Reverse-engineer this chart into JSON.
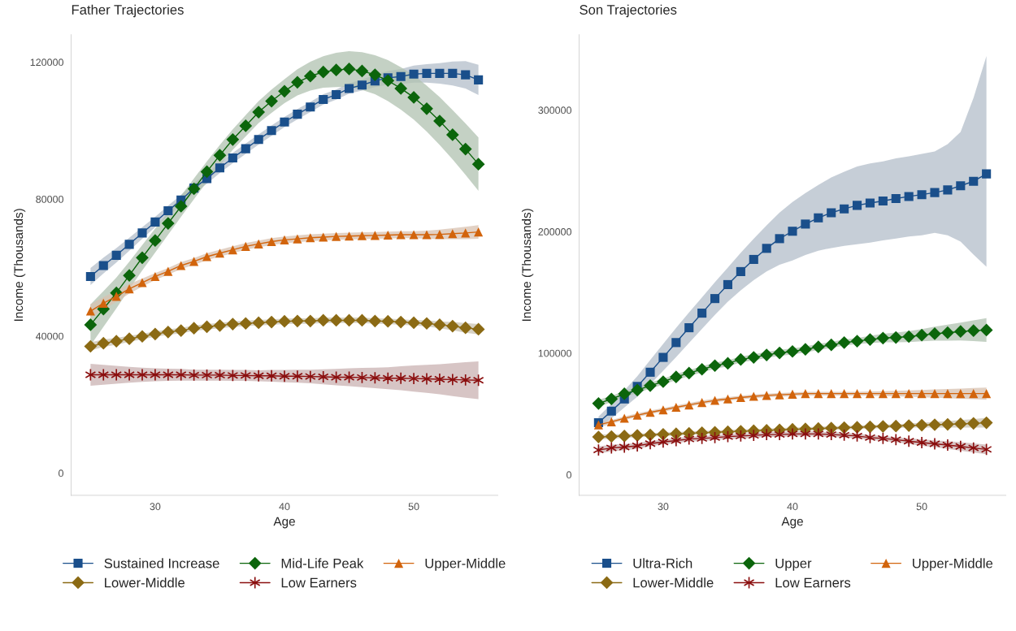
{
  "chart_data": [
    {
      "type": "line",
      "title": "Father Trajectories",
      "xlabel": "Age",
      "ylabel": "Income (Thousands)",
      "x": [
        25,
        26,
        27,
        28,
        29,
        30,
        31,
        32,
        33,
        34,
        35,
        36,
        37,
        38,
        39,
        40,
        41,
        42,
        43,
        44,
        45,
        46,
        47,
        48,
        49,
        50,
        51,
        52,
        53,
        54,
        55
      ],
      "xlim": [
        23.5,
        56.5
      ],
      "xticks": [
        30,
        40,
        50
      ],
      "ylim": [
        -6500,
        128000
      ],
      "yticks": [
        0,
        40000,
        80000,
        120000
      ],
      "grid": false,
      "legend": "bottom",
      "series": [
        {
          "name": "Sustained Increase",
          "color": "#1a4f8b",
          "marker": "square",
          "values": [
            57400,
            60600,
            63600,
            66800,
            70100,
            73300,
            76600,
            79700,
            83200,
            86000,
            89100,
            92000,
            94700,
            97400,
            100000,
            102500,
            104800,
            106900,
            109100,
            110500,
            112300,
            113300,
            114500,
            115400,
            115800,
            116500,
            116700,
            116700,
            116700,
            116300,
            114800
          ],
          "lower": [
            54900,
            58300,
            61500,
            64900,
            68400,
            71800,
            75100,
            78200,
            81700,
            84500,
            87600,
            90500,
            93200,
            95900,
            98500,
            101000,
            103300,
            105400,
            107600,
            109000,
            110800,
            111700,
            112700,
            113400,
            113600,
            114000,
            114000,
            113700,
            113200,
            112300,
            110400
          ],
          "upper": [
            59900,
            62900,
            65700,
            68700,
            71800,
            74800,
            78100,
            81200,
            84700,
            87500,
            90600,
            93500,
            96200,
            98900,
            101500,
            104000,
            106300,
            108400,
            110600,
            112000,
            113800,
            114900,
            116300,
            117400,
            118000,
            119000,
            119400,
            119700,
            120200,
            120300,
            119200
          ]
        },
        {
          "name": "Mid-Life Peak",
          "color": "#0b650b",
          "marker": "diamond",
          "values": [
            43300,
            47900,
            52600,
            57700,
            62900,
            67900,
            72900,
            77900,
            83000,
            88000,
            92800,
            97400,
            101400,
            105400,
            108600,
            111500,
            114100,
            115900,
            117100,
            117700,
            118000,
            117400,
            116300,
            114600,
            112300,
            109700,
            106400,
            102800,
            98800,
            94600,
            90200
          ],
          "lower": [
            37300,
            42700,
            48100,
            53700,
            59200,
            64400,
            69600,
            74800,
            80000,
            85000,
            89800,
            94400,
            98300,
            102200,
            105200,
            108000,
            110300,
            111700,
            112500,
            112700,
            112800,
            111900,
            110600,
            108600,
            106100,
            103200,
            99700,
            95800,
            91600,
            87100,
            82400
          ],
          "upper": [
            49300,
            53100,
            57100,
            61700,
            66600,
            71400,
            76200,
            81000,
            86000,
            91000,
            95800,
            100400,
            104500,
            108600,
            112000,
            115000,
            117900,
            120100,
            121700,
            122700,
            123200,
            122900,
            122000,
            120600,
            118500,
            116200,
            113100,
            109800,
            106000,
            102100,
            98000
          ]
        },
        {
          "name": "Upper-Middle",
          "color": "#d2640c",
          "marker": "triangle",
          "values": [
            47300,
            49600,
            51600,
            53800,
            55600,
            57400,
            58900,
            60600,
            61800,
            63200,
            64200,
            65200,
            66200,
            66900,
            67600,
            68100,
            68400,
            68700,
            68900,
            69100,
            69200,
            69300,
            69400,
            69500,
            69600,
            69600,
            69600,
            69700,
            69900,
            70100,
            70400
          ],
          "lower": [
            45300,
            47800,
            50000,
            52400,
            54400,
            56400,
            57900,
            59600,
            60800,
            62200,
            63200,
            64200,
            65200,
            65900,
            66600,
            67100,
            67400,
            67700,
            67900,
            68100,
            68200,
            68300,
            68400,
            68500,
            68600,
            68600,
            68400,
            68300,
            68300,
            68300,
            68400
          ],
          "upper": [
            49300,
            51400,
            53200,
            55200,
            56800,
            58400,
            59900,
            61600,
            62800,
            64200,
            65200,
            66200,
            67200,
            67900,
            68600,
            69100,
            69400,
            69700,
            69900,
            70100,
            70200,
            70300,
            70400,
            70500,
            70600,
            70600,
            70800,
            71100,
            71500,
            71900,
            72400
          ]
        },
        {
          "name": "Lower-Middle",
          "color": "#8b6a14",
          "marker": "diamond",
          "values": [
            37000,
            37900,
            38500,
            39200,
            39900,
            40600,
            41200,
            41600,
            42300,
            42700,
            43100,
            43500,
            43700,
            43900,
            44100,
            44300,
            44400,
            44400,
            44600,
            44600,
            44600,
            44600,
            44400,
            44300,
            44100,
            43900,
            43700,
            43300,
            42900,
            42400,
            42000
          ],
          "lower": [
            35800,
            36800,
            37500,
            38300,
            39100,
            39800,
            40400,
            40800,
            41500,
            41900,
            42300,
            42700,
            42900,
            43100,
            43300,
            43500,
            43600,
            43600,
            43800,
            43800,
            43800,
            43800,
            43600,
            43500,
            43300,
            43100,
            42800,
            42300,
            41700,
            41000,
            40500
          ],
          "upper": [
            38200,
            39000,
            39500,
            40100,
            40700,
            41400,
            42000,
            42400,
            43100,
            43500,
            43900,
            44300,
            44500,
            44700,
            44900,
            45100,
            45200,
            45200,
            45400,
            45400,
            45400,
            45400,
            45200,
            45100,
            44900,
            44700,
            44600,
            44300,
            44100,
            43800,
            43500
          ]
        },
        {
          "name": "Low Earners",
          "color": "#8b0f0f",
          "marker": "cross",
          "values": [
            28700,
            28700,
            28700,
            28700,
            28700,
            28700,
            28700,
            28700,
            28600,
            28600,
            28600,
            28500,
            28500,
            28400,
            28400,
            28300,
            28300,
            28200,
            28100,
            28000,
            28000,
            27900,
            27800,
            27700,
            27700,
            27600,
            27500,
            27400,
            27300,
            27200,
            27100
          ],
          "lower": [
            25500,
            25800,
            26100,
            26400,
            26600,
            26800,
            26900,
            27000,
            27000,
            27000,
            27000,
            26900,
            26900,
            26800,
            26700,
            26500,
            26400,
            26200,
            25900,
            25600,
            25400,
            25100,
            24800,
            24500,
            24200,
            23800,
            23400,
            23000,
            22500,
            22000,
            21600
          ],
          "upper": [
            31900,
            31600,
            31300,
            31000,
            30800,
            30600,
            30500,
            30400,
            30200,
            30200,
            30200,
            30100,
            30100,
            30000,
            30100,
            30100,
            30200,
            30200,
            30300,
            30400,
            30600,
            30700,
            30800,
            30900,
            31200,
            31400,
            31600,
            31800,
            32100,
            32400,
            32600
          ]
        }
      ]
    },
    {
      "type": "line",
      "title": "Son Trajectories",
      "xlabel": "Age",
      "ylabel": "Income (Thousands)",
      "x": [
        25,
        26,
        27,
        28,
        29,
        30,
        31,
        32,
        33,
        34,
        35,
        36,
        37,
        38,
        39,
        40,
        41,
        42,
        43,
        44,
        45,
        46,
        47,
        48,
        49,
        50,
        51,
        52,
        53,
        54,
        55
      ],
      "xlim": [
        23.5,
        56.5
      ],
      "xticks": [
        30,
        40,
        50
      ],
      "ylim": [
        -17000,
        362000
      ],
      "yticks": [
        0,
        100000,
        200000,
        300000
      ],
      "grid": false,
      "legend": "bottom",
      "series": [
        {
          "name": "Ultra-Rich",
          "color": "#1a4f8b",
          "marker": "square",
          "values": [
            42800,
            52300,
            62300,
            72600,
            84300,
            96500,
            108700,
            120900,
            132900,
            144900,
            156400,
            167100,
            177100,
            186200,
            194200,
            200300,
            206200,
            211300,
            215500,
            218700,
            221600,
            223500,
            225200,
            227200,
            228900,
            230400,
            232100,
            234300,
            237700,
            241400,
            247500
          ],
          "lower": [
            37800,
            46300,
            55300,
            64100,
            74300,
            85500,
            96700,
            108400,
            119900,
            131400,
            142400,
            151600,
            160100,
            167200,
            172700,
            176300,
            180700,
            184300,
            186500,
            188200,
            189600,
            191000,
            192700,
            194200,
            195900,
            196900,
            199000,
            197000,
            191800,
            181000,
            171000
          ],
          "upper": [
            47800,
            58300,
            69300,
            81100,
            94300,
            107500,
            120700,
            133400,
            145900,
            158400,
            170400,
            182600,
            194100,
            205200,
            215700,
            224300,
            231700,
            238300,
            244500,
            249200,
            253600,
            256000,
            257700,
            260200,
            261900,
            263900,
            266000,
            272000,
            282000,
            310000,
            344500
          ]
        },
        {
          "name": "Upper",
          "color": "#0b650b",
          "marker": "diamond",
          "values": [
            58600,
            62300,
            66500,
            69600,
            73300,
            76500,
            80400,
            83600,
            86700,
            89700,
            91600,
            94800,
            96500,
            98500,
            100200,
            101400,
            103100,
            105100,
            106800,
            108700,
            109900,
            111200,
            112400,
            112900,
            113600,
            114800,
            116000,
            116800,
            117800,
            118500,
            119000
          ],
          "lower": [
            55600,
            59800,
            64000,
            67100,
            70800,
            74000,
            77900,
            81100,
            84200,
            87200,
            89100,
            92300,
            94000,
            96000,
            97700,
            98900,
            100600,
            102600,
            104300,
            106200,
            107400,
            108200,
            108900,
            108900,
            109100,
            109800,
            110200,
            110200,
            110400,
            110000,
            109200
          ],
          "upper": [
            61600,
            64800,
            69000,
            72100,
            75800,
            79000,
            82900,
            86100,
            89200,
            92200,
            94100,
            97300,
            99000,
            101000,
            102700,
            103900,
            105600,
            107600,
            109300,
            111200,
            112400,
            114200,
            115900,
            116900,
            118100,
            119800,
            121800,
            123400,
            125200,
            127000,
            128800
          ]
        },
        {
          "name": "Upper-Middle",
          "color": "#d2640c",
          "marker": "triangle",
          "values": [
            41000,
            43500,
            46400,
            48900,
            51300,
            53300,
            55500,
            57400,
            59400,
            61100,
            62300,
            63500,
            64500,
            65200,
            65700,
            66200,
            66700,
            66700,
            66700,
            66700,
            66700,
            66700,
            66700,
            66700,
            66700,
            66700,
            66700,
            66700,
            66700,
            66700,
            66700
          ],
          "lower": [
            39000,
            42000,
            44900,
            47400,
            49800,
            51800,
            54000,
            55900,
            57900,
            59600,
            60800,
            62000,
            63000,
            63700,
            64200,
            64700,
            65200,
            65200,
            65200,
            65200,
            65200,
            64900,
            64700,
            64400,
            64100,
            63700,
            63300,
            62900,
            62500,
            62100,
            61700
          ],
          "upper": [
            43000,
            45000,
            47900,
            50400,
            52800,
            54800,
            57000,
            58900,
            60900,
            62600,
            63800,
            65000,
            66000,
            66700,
            67200,
            67700,
            68200,
            68200,
            68200,
            68200,
            68200,
            68500,
            68700,
            69000,
            69300,
            69700,
            70100,
            70500,
            70900,
            71300,
            71700
          ]
        },
        {
          "name": "Lower-Middle",
          "color": "#8b6a14",
          "marker": "diamond",
          "values": [
            31000,
            31400,
            31800,
            32300,
            32700,
            33200,
            33600,
            34000,
            34500,
            34900,
            35300,
            35700,
            36100,
            36500,
            36900,
            37300,
            37600,
            38000,
            38300,
            38700,
            39000,
            39400,
            39700,
            40000,
            40400,
            40700,
            41100,
            41400,
            41800,
            42200,
            42700
          ],
          "lower": [
            29000,
            29600,
            30200,
            30800,
            31200,
            31700,
            32100,
            32500,
            33000,
            33400,
            33800,
            34200,
            34600,
            35000,
            35400,
            35800,
            36100,
            36500,
            36800,
            37200,
            37500,
            37900,
            38200,
            38500,
            38700,
            38700,
            38800,
            38700,
            38700,
            38700,
            38700
          ],
          "upper": [
            33000,
            33200,
            33400,
            33800,
            34200,
            34700,
            35100,
            35500,
            36000,
            36400,
            36800,
            37200,
            37600,
            38000,
            38400,
            38800,
            39100,
            39500,
            39800,
            40200,
            40500,
            40900,
            41200,
            41500,
            42100,
            42700,
            43400,
            44100,
            44900,
            45700,
            46700
          ]
        },
        {
          "name": "Low Earners",
          "color": "#8b0f0f",
          "marker": "cross",
          "values": [
            20300,
            22000,
            22700,
            23700,
            25600,
            26900,
            28100,
            29300,
            29800,
            30500,
            31300,
            31800,
            32300,
            33000,
            33000,
            33500,
            33500,
            33500,
            33000,
            32500,
            31800,
            30500,
            29800,
            28800,
            27600,
            26400,
            25400,
            24400,
            23200,
            22000,
            20800
          ],
          "lower": [
            17300,
            19200,
            20100,
            21300,
            23400,
            24900,
            26100,
            27300,
            27800,
            28500,
            29300,
            29800,
            30300,
            31000,
            31000,
            31500,
            31500,
            31500,
            31000,
            30500,
            29800,
            28500,
            27800,
            26800,
            25300,
            23800,
            22500,
            21200,
            19700,
            18200,
            16800
          ],
          "upper": [
            23300,
            24800,
            25300,
            26100,
            27800,
            28900,
            30100,
            31300,
            31800,
            32500,
            33300,
            33800,
            34300,
            35000,
            35000,
            35500,
            35500,
            35500,
            35000,
            34500,
            33800,
            32500,
            31800,
            30800,
            29900,
            29000,
            28300,
            27600,
            26700,
            25800,
            24800
          ]
        }
      ]
    }
  ]
}
